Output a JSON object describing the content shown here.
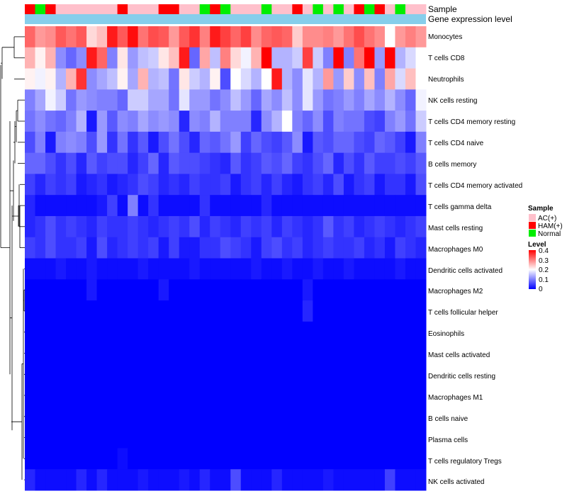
{
  "chart_data": {
    "type": "heatmap",
    "annotation_tracks": [
      "Sample",
      "Gene expression level"
    ],
    "sample_groups": [
      "HAM(+)",
      "Normal",
      "HAM(+)",
      "AC(+)",
      "AC(+)",
      "AC(+)",
      "AC(+)",
      "AC(+)",
      "AC(+)",
      "HAM(+)",
      "AC(+)",
      "AC(+)",
      "AC(+)",
      "HAM(+)",
      "HAM(+)",
      "AC(+)",
      "AC(+)",
      "Normal",
      "HAM(+)",
      "Normal",
      "AC(+)",
      "AC(+)",
      "AC(+)",
      "Normal",
      "AC(+)",
      "AC(+)",
      "HAM(+)",
      "AC(+)",
      "Normal",
      "AC(+)",
      "Normal",
      "AC(+)",
      "HAM(+)",
      "Normal",
      "HAM(+)",
      "AC(+)",
      "Normal",
      "AC(+)",
      "AC(+)"
    ],
    "rows": [
      "Monocytes",
      "T cells CD8",
      "Neutrophils",
      "NK cells resting",
      "T cells CD4 memory resting",
      "T cells CD4 naive",
      "B cells memory",
      "T cells CD4 memory activated",
      "T cells gamma delta",
      "Mast cells resting",
      "Macrophages M0",
      "Dendritic cells activated",
      "Macrophages M2",
      "T cells follicular helper",
      "Eosinophils",
      "Mast cells activated",
      "Dendritic cells resting",
      "Macrophages M1",
      "B cells naive",
      "Plasma cells",
      "T cells regulatory  Tregs",
      "NK cells activated"
    ],
    "values": [
      [
        0.32,
        0.28,
        0.29,
        0.33,
        0.31,
        0.33,
        0.23,
        0.25,
        0.38,
        0.33,
        0.39,
        0.31,
        0.34,
        0.33,
        0.28,
        0.33,
        0.36,
        0.3,
        0.38,
        0.35,
        0.32,
        0.35,
        0.29,
        0.32,
        0.33,
        0.32,
        0.24,
        0.29,
        0.29,
        0.3,
        0.28,
        0.31,
        0.34,
        0.31,
        0.29,
        0.2,
        0.28,
        0.3,
        0.28
      ],
      [
        0.26,
        0.21,
        0.26,
        0.11,
        0.08,
        0.11,
        0.38,
        0.32,
        0.1,
        0.22,
        0.12,
        0.15,
        0.16,
        0.22,
        0.25,
        0.38,
        0.08,
        0.27,
        0.15,
        0.3,
        0.23,
        0.19,
        0.26,
        0.4,
        0.14,
        0.14,
        0.16,
        0.35,
        0.16,
        0.1,
        0.4,
        0.1,
        0.31,
        0.4,
        0.12,
        0.4,
        0.14,
        0.17,
        0.2
      ],
      [
        0.21,
        0.19,
        0.21,
        0.14,
        0.26,
        0.36,
        0.11,
        0.13,
        0.15,
        0.21,
        0.13,
        0.26,
        0.14,
        0.15,
        0.09,
        0.22,
        0.16,
        0.14,
        0.21,
        0.06,
        0.2,
        0.17,
        0.14,
        0.2,
        0.38,
        0.14,
        0.11,
        0.18,
        0.14,
        0.28,
        0.12,
        0.24,
        0.11,
        0.25,
        0.1,
        0.27,
        0.17,
        0.25,
        0.2
      ],
      [
        0.1,
        0.13,
        0.19,
        0.16,
        0.09,
        0.12,
        0.11,
        0.1,
        0.1,
        0.08,
        0.16,
        0.16,
        0.13,
        0.13,
        0.09,
        0.18,
        0.12,
        0.12,
        0.09,
        0.11,
        0.15,
        0.12,
        0.08,
        0.13,
        0.11,
        0.15,
        0.11,
        0.18,
        0.12,
        0.09,
        0.1,
        0.12,
        0.1,
        0.13,
        0.11,
        0.14,
        0.11,
        0.08,
        0.19
      ],
      [
        0.09,
        0.11,
        0.09,
        0.08,
        0.1,
        0.14,
        0.02,
        0.12,
        0.07,
        0.11,
        0.1,
        0.13,
        0.11,
        0.12,
        0.11,
        0.03,
        0.11,
        0.1,
        0.14,
        0.1,
        0.1,
        0.1,
        0.03,
        0.11,
        0.14,
        0.2,
        0.1,
        0.08,
        0.11,
        0.06,
        0.1,
        0.09,
        0.09,
        0.06,
        0.05,
        0.1,
        0.12,
        0.09,
        0.16
      ],
      [
        0.06,
        0.1,
        0.02,
        0.1,
        0.11,
        0.1,
        0.06,
        0.12,
        0.04,
        0.09,
        0.04,
        0.07,
        0.02,
        0.06,
        0.09,
        0.06,
        0.03,
        0.08,
        0.07,
        0.09,
        0.12,
        0.05,
        0.08,
        0.06,
        0.05,
        0.07,
        0.11,
        0.02,
        0.07,
        0.06,
        0.08,
        0.08,
        0.06,
        0.05,
        0.08,
        0.07,
        0.05,
        0.02,
        0.1
      ],
      [
        0.08,
        0.08,
        0.06,
        0.04,
        0.06,
        0.03,
        0.07,
        0.05,
        0.06,
        0.06,
        0.03,
        0.05,
        0.08,
        0.03,
        0.07,
        0.06,
        0.06,
        0.05,
        0.04,
        0.03,
        0.07,
        0.04,
        0.05,
        0.07,
        0.06,
        0.08,
        0.05,
        0.04,
        0.06,
        0.08,
        0.03,
        0.06,
        0.04,
        0.07,
        0.05,
        0.05,
        0.06,
        0.05,
        0.07
      ],
      [
        0.05,
        0.03,
        0.05,
        0.04,
        0.05,
        0.02,
        0.03,
        0.04,
        0.02,
        0.03,
        0.04,
        0.06,
        0.05,
        0.03,
        0.04,
        0.03,
        0.05,
        0.04,
        0.04,
        0.05,
        0.02,
        0.04,
        0.05,
        0.03,
        0.05,
        0.03,
        0.02,
        0.04,
        0.05,
        0.03,
        0.06,
        0.02,
        0.04,
        0.05,
        0.02,
        0.04,
        0.04,
        0.02,
        0.06
      ],
      [
        0.03,
        0.01,
        0.01,
        0.01,
        0.01,
        0.01,
        0.01,
        0.02,
        0.05,
        0.01,
        0.1,
        0.01,
        0.04,
        0.01,
        0.01,
        0.01,
        0.01,
        0.04,
        0.01,
        0.01,
        0.01,
        0.01,
        0.01,
        0.03,
        0.01,
        0.01,
        0.01,
        0.01,
        0.01,
        0.01,
        0.01,
        0.01,
        0.01,
        0.01,
        0.01,
        0.01,
        0.01,
        0.01,
        0.01
      ],
      [
        0.03,
        0.04,
        0.06,
        0.04,
        0.05,
        0.04,
        0.03,
        0.05,
        0.04,
        0.04,
        0.05,
        0.04,
        0.03,
        0.04,
        0.05,
        0.04,
        0.06,
        0.03,
        0.05,
        0.04,
        0.03,
        0.05,
        0.04,
        0.05,
        0.03,
        0.05,
        0.04,
        0.03,
        0.04,
        0.07,
        0.04,
        0.05,
        0.03,
        0.04,
        0.05,
        0.04,
        0.03,
        0.04,
        0.05
      ],
      [
        0.05,
        0.04,
        0.06,
        0.04,
        0.04,
        0.05,
        0.02,
        0.06,
        0.03,
        0.04,
        0.05,
        0.04,
        0.05,
        0.02,
        0.05,
        0.02,
        0.02,
        0.04,
        0.04,
        0.06,
        0.05,
        0.04,
        0.02,
        0.05,
        0.06,
        0.04,
        0.05,
        0.03,
        0.04,
        0.05,
        0.04,
        0.04,
        0.05,
        0.03,
        0.04,
        0.02,
        0.05,
        0.04,
        0.03
      ],
      [
        0.01,
        0.01,
        0.01,
        0.02,
        0.01,
        0.01,
        0.02,
        0.01,
        0.01,
        0.01,
        0.01,
        0.02,
        0.01,
        0.01,
        0.01,
        0.01,
        0.02,
        0.01,
        0.01,
        0.01,
        0.01,
        0.01,
        0.02,
        0.01,
        0.01,
        0.02,
        0.01,
        0.01,
        0.02,
        0.01,
        0.01,
        0.02,
        0.01,
        0.01,
        0.01,
        0.01,
        0.02,
        0.01,
        0.01
      ],
      [
        0,
        0,
        0,
        0,
        0,
        0,
        0.02,
        0,
        0,
        0,
        0,
        0,
        0,
        0.02,
        0,
        0,
        0,
        0,
        0,
        0,
        0,
        0,
        0,
        0,
        0,
        0,
        0,
        0.02,
        0,
        0,
        0,
        0,
        0,
        0,
        0,
        0,
        0,
        0,
        0
      ],
      [
        0,
        0,
        0,
        0,
        0,
        0,
        0,
        0,
        0,
        0,
        0,
        0,
        0,
        0,
        0,
        0,
        0,
        0,
        0,
        0,
        0,
        0,
        0,
        0,
        0,
        0,
        0,
        0.03,
        0,
        0,
        0,
        0,
        0,
        0,
        0,
        0,
        0,
        0,
        0
      ],
      [
        0,
        0,
        0,
        0,
        0,
        0,
        0,
        0,
        0,
        0,
        0,
        0,
        0,
        0,
        0,
        0,
        0,
        0,
        0,
        0,
        0,
        0,
        0,
        0,
        0,
        0,
        0,
        0,
        0,
        0,
        0,
        0,
        0,
        0,
        0,
        0,
        0,
        0,
        0
      ],
      [
        0,
        0,
        0,
        0,
        0,
        0,
        0,
        0,
        0,
        0,
        0,
        0,
        0,
        0,
        0,
        0,
        0,
        0,
        0,
        0,
        0,
        0,
        0,
        0,
        0,
        0,
        0,
        0,
        0,
        0,
        0,
        0,
        0,
        0,
        0,
        0,
        0,
        0,
        0
      ],
      [
        0,
        0,
        0,
        0,
        0,
        0,
        0,
        0,
        0,
        0,
        0,
        0,
        0,
        0,
        0,
        0,
        0,
        0,
        0,
        0,
        0,
        0,
        0,
        0,
        0,
        0,
        0,
        0,
        0,
        0,
        0,
        0,
        0,
        0,
        0,
        0,
        0,
        0,
        0
      ],
      [
        0,
        0,
        0,
        0,
        0,
        0,
        0,
        0,
        0,
        0,
        0,
        0,
        0,
        0,
        0,
        0,
        0,
        0,
        0,
        0,
        0,
        0,
        0,
        0,
        0,
        0,
        0,
        0,
        0,
        0,
        0,
        0,
        0,
        0,
        0,
        0,
        0,
        0,
        0
      ],
      [
        0,
        0,
        0,
        0,
        0,
        0,
        0,
        0,
        0,
        0,
        0,
        0,
        0,
        0,
        0,
        0,
        0,
        0,
        0,
        0,
        0,
        0,
        0,
        0,
        0,
        0,
        0,
        0,
        0,
        0,
        0,
        0,
        0,
        0,
        0,
        0,
        0,
        0,
        0
      ],
      [
        0,
        0,
        0,
        0,
        0,
        0,
        0,
        0,
        0,
        0,
        0,
        0,
        0,
        0,
        0,
        0,
        0,
        0,
        0,
        0,
        0,
        0,
        0,
        0,
        0,
        0,
        0,
        0,
        0,
        0,
        0,
        0,
        0,
        0,
        0,
        0,
        0,
        0,
        0
      ],
      [
        0,
        0,
        0,
        0,
        0,
        0,
        0,
        0,
        0,
        0.01,
        0,
        0,
        0,
        0,
        0,
        0,
        0,
        0,
        0,
        0,
        0,
        0,
        0,
        0,
        0,
        0,
        0,
        0,
        0,
        0,
        0,
        0,
        0,
        0,
        0,
        0,
        0,
        0,
        0
      ],
      [
        0.03,
        0.01,
        0.01,
        0.01,
        0.01,
        0.03,
        0.01,
        0.03,
        0.01,
        0.01,
        0.01,
        0.02,
        0.01,
        0.01,
        0.01,
        0.02,
        0.01,
        0.03,
        0.01,
        0.01,
        0.06,
        0.01,
        0.01,
        0.01,
        0.03,
        0.01,
        0.01,
        0.01,
        0.01,
        0.02,
        0.01,
        0.01,
        0.01,
        0.01,
        0.01,
        0.05,
        0.01,
        0.01,
        0.01
      ]
    ],
    "legend_sample": {
      "title": "Sample",
      "entries": [
        {
          "label": "AC(+)",
          "color": "#FFC0CB"
        },
        {
          "label": "HAM(+)",
          "color": "#FF0000"
        },
        {
          "label": "Normal",
          "color": "#00EE00"
        }
      ]
    },
    "legend_level": {
      "title": "Level",
      "min": 0,
      "max": 0.4,
      "ticks": [
        "0.4",
        "0.3",
        "0.2",
        "0.1",
        "0"
      ],
      "color_low": "#0000FF",
      "color_mid": "#FFFFFF",
      "color_high": "#FF0000"
    },
    "expression_bar_color": "#87CEEB"
  }
}
